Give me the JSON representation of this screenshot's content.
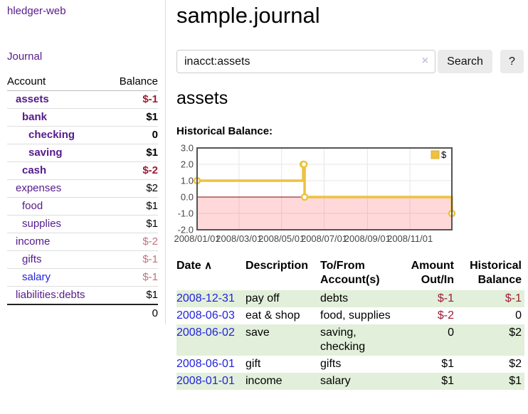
{
  "sidebar": {
    "brand": "hledger-web",
    "journal_link": "Journal",
    "accounts": {
      "col_account": "Account",
      "col_balance": "Balance",
      "rows": [
        {
          "name": "assets",
          "depth": 1,
          "bold": true,
          "balance": "$-1",
          "neg": "strong"
        },
        {
          "name": "bank",
          "depth": 2,
          "bold": true,
          "balance": "$1"
        },
        {
          "name": "checking",
          "depth": 3,
          "bold": true,
          "balance": "0"
        },
        {
          "name": "saving",
          "depth": 3,
          "bold": true,
          "balance": "$1"
        },
        {
          "name": "cash",
          "depth": 2,
          "bold": true,
          "balance": "$-2",
          "neg": "strong"
        },
        {
          "name": "expenses",
          "depth": 1,
          "balance": "$2"
        },
        {
          "name": "food",
          "depth": 2,
          "balance": "$1"
        },
        {
          "name": "supplies",
          "depth": 2,
          "balance": "$1"
        },
        {
          "name": "income",
          "depth": 1,
          "balance": "$-2",
          "neg": "soft"
        },
        {
          "name": "gifts",
          "depth": 2,
          "balance": "$-1",
          "neg": "soft"
        },
        {
          "name": "salary",
          "depth": 2,
          "blue": true,
          "balance": "$-1",
          "neg": "soft"
        },
        {
          "name": "liabilities:debts",
          "depth": 1,
          "balance": "$1"
        }
      ],
      "total": "0"
    }
  },
  "main": {
    "title": "sample.journal",
    "search": {
      "value": "inacct:assets",
      "clear_icon": "×",
      "button_label": "Search",
      "help_label": "?"
    },
    "account_heading": "assets",
    "chart_label": "Historical Balance:",
    "register": {
      "headers": {
        "date": "Date",
        "sort_icon": "∧",
        "description": "Description",
        "accounts": "To/From Account(s)",
        "amount": "Amount Out/In",
        "balance": "Historical Balance"
      },
      "rows": [
        {
          "date": "2008-12-31",
          "description": "pay off",
          "accounts": "debts",
          "amount": "$-1",
          "amount_neg": true,
          "balance": "$-1",
          "balance_neg": true
        },
        {
          "date": "2008-06-03",
          "description": "eat & shop",
          "accounts": "food, supplies",
          "amount": "$-2",
          "amount_neg": true,
          "balance": "0",
          "balance_neg": false
        },
        {
          "date": "2008-06-02",
          "description": "save",
          "accounts": "saving, checking",
          "amount": "0",
          "amount_neg": false,
          "balance": "$2",
          "balance_neg": false
        },
        {
          "date": "2008-06-01",
          "description": "gift",
          "accounts": "gifts",
          "amount": "$1",
          "amount_neg": false,
          "balance": "$2",
          "balance_neg": false
        },
        {
          "date": "2008-01-01",
          "description": "income",
          "accounts": "salary",
          "amount": "$1",
          "amount_neg": false,
          "balance": "$1",
          "balance_neg": false
        }
      ]
    }
  },
  "chart_data": {
    "type": "line",
    "title": "Historical Balance",
    "legend": {
      "label": "$",
      "position": "top-right"
    },
    "x_start": "2008-01-01",
    "x_end": "2008-12-31",
    "ylim": [
      -2,
      3
    ],
    "y_ticks": [
      "3.0",
      "2.0",
      "1.0",
      "0.0",
      "-1.0",
      "-2.0"
    ],
    "x_ticks": [
      "2008/01/01",
      "2008/03/01",
      "2008/05/01",
      "2008/07/01",
      "2008/09/01",
      "2008/11/01"
    ],
    "series": [
      {
        "name": "$",
        "color": "#edc240",
        "step": "after",
        "points": [
          {
            "x": "2008-01-01",
            "y": 1
          },
          {
            "x": "2008-06-01",
            "y": 2
          },
          {
            "x": "2008-06-02",
            "y": 2
          },
          {
            "x": "2008-06-03",
            "y": 0
          },
          {
            "x": "2008-12-31",
            "y": -1
          }
        ]
      }
    ],
    "zero_line_color": "#8b0000",
    "negative_region": true
  }
}
